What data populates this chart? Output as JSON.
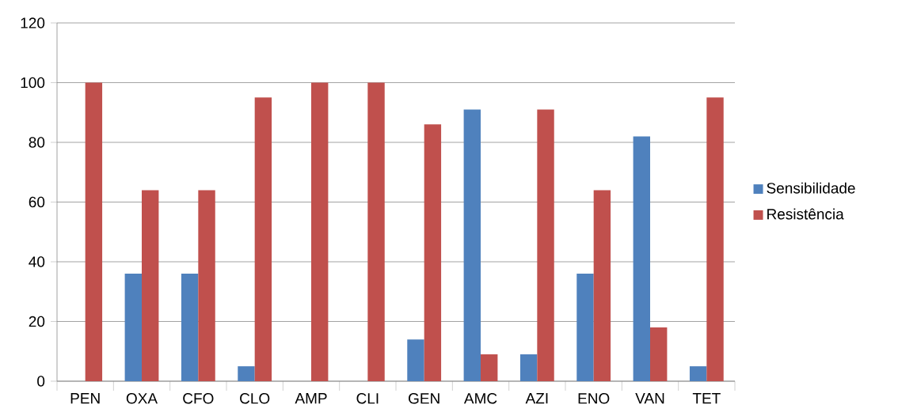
{
  "chart_data": {
    "type": "bar",
    "categories": [
      "PEN",
      "OXA",
      "CFO",
      "CLO",
      "AMP",
      "CLI",
      "GEN",
      "AMC",
      "AZI",
      "ENO",
      "VAN",
      "TET"
    ],
    "series": [
      {
        "name": "Sensibilidade",
        "color": "#4f81bd",
        "values": [
          0,
          36,
          36,
          5,
          0,
          0,
          14,
          91,
          9,
          36,
          82,
          5
        ]
      },
      {
        "name": "Resistência",
        "color": "#c0504d",
        "values": [
          100,
          64,
          64,
          95,
          100,
          100,
          86,
          9,
          91,
          64,
          18,
          95
        ]
      }
    ],
    "ylim": [
      0,
      120
    ],
    "yticks": [
      0,
      20,
      40,
      60,
      80,
      100,
      120
    ],
    "grid": "y",
    "legend": "right"
  }
}
